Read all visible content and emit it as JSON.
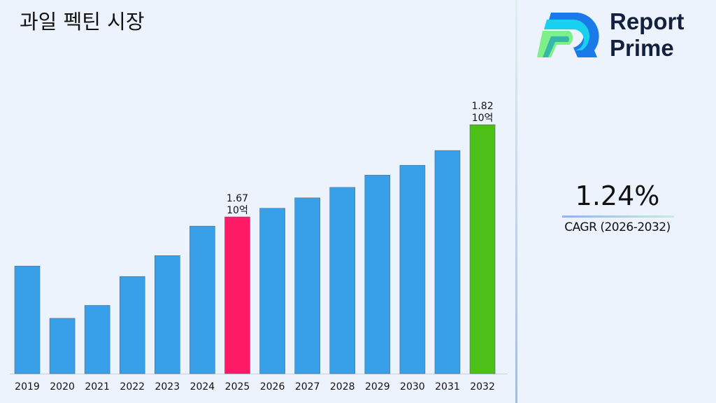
{
  "title": "과일 펙틴 시장",
  "logo": {
    "line1": "Report",
    "line2": "Prime"
  },
  "cagr": {
    "value": "1.24%",
    "label": "CAGR (2026-2032)"
  },
  "colors": {
    "default": "#38a0e8",
    "highlight": "#ff1a66",
    "final": "#4cc017"
  },
  "chart_data": {
    "type": "bar",
    "title": "과일 펙틴 시장",
    "categories": [
      "2019",
      "2020",
      "2021",
      "2022",
      "2023",
      "2024",
      "2025",
      "2026",
      "2027",
      "2028",
      "2029",
      "2030",
      "2031",
      "2032"
    ],
    "values": [
      1.59,
      1.505,
      1.526,
      1.573,
      1.607,
      1.655,
      1.67,
      1.684,
      1.701,
      1.718,
      1.738,
      1.754,
      1.778,
      1.82
    ],
    "unit": "10억",
    "ylim": [
      1.415,
      1.86
    ],
    "grid": false,
    "data_labels": [
      {
        "category": "2025",
        "value": "1.67",
        "unit": "10억"
      },
      {
        "category": "2032",
        "value": "1.82",
        "unit": "10억"
      }
    ]
  }
}
